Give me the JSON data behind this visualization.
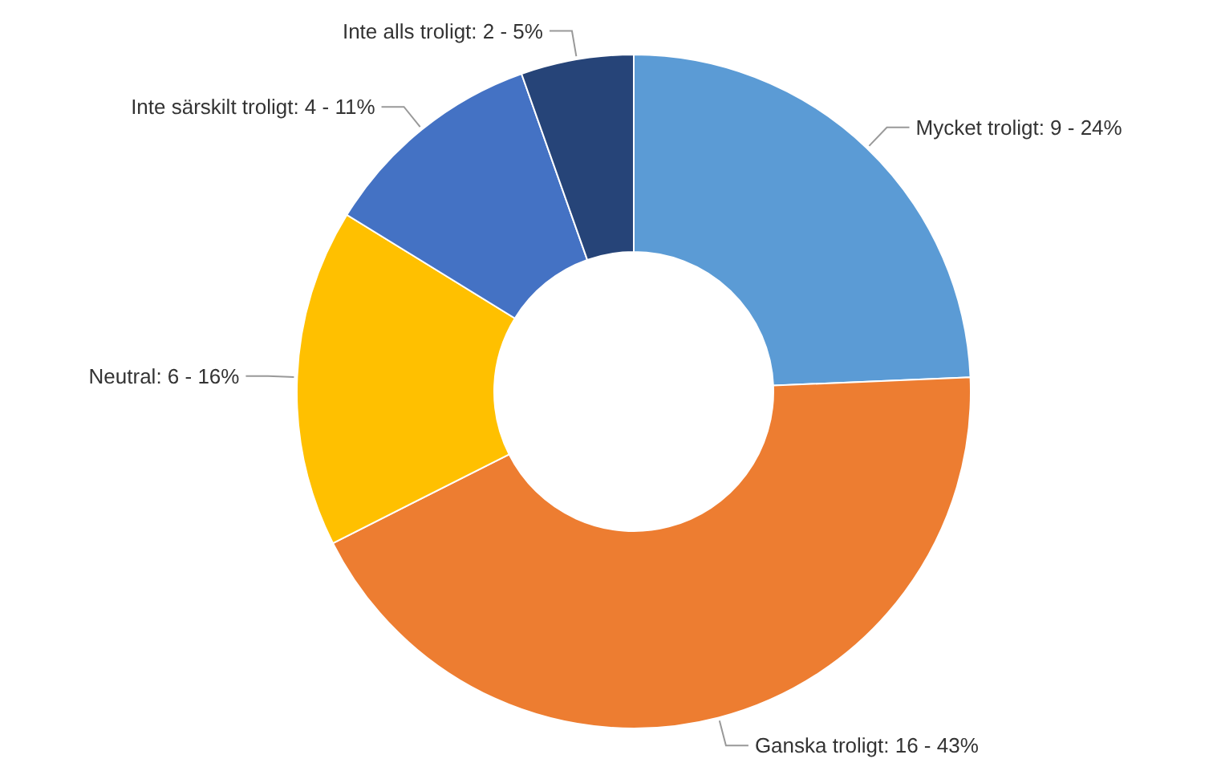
{
  "chart_data": {
    "type": "donut",
    "categories": [
      "Mycket troligt",
      "Ganska troligt",
      "Neutral",
      "Inte särskilt troligt",
      "Inte alls troligt"
    ],
    "values": [
      9,
      16,
      6,
      4,
      2
    ],
    "value_labels": [
      "9 - 24%",
      "16 - 43%",
      "6 - 16%",
      "4 - 11%",
      "2 - 5%"
    ],
    "colors": [
      "#5b9bd5",
      "#ed7d31",
      "#ffc000",
      "#4472c4",
      "#264478"
    ],
    "legend": false
  }
}
